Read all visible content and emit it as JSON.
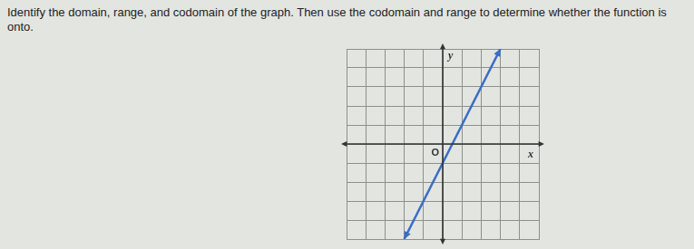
{
  "question": "Identify the domain, range, and codomain of the graph. Then use the codomain and range to determine whether the function is onto.",
  "chart_data": {
    "type": "line",
    "x": [
      -2,
      3
    ],
    "values": [
      -5,
      5
    ],
    "color": "#3a6cc8",
    "marker": "arrow",
    "xlabel": "x",
    "ylabel": "y",
    "annotations": [
      "O"
    ],
    "xlim": [
      -5,
      5
    ],
    "ylim": [
      -5,
      5
    ],
    "xticks": [
      -5,
      -4,
      -3,
      -2,
      -1,
      0,
      1,
      2,
      3,
      4,
      5
    ],
    "yticks": [
      -5,
      -4,
      -3,
      -2,
      -1,
      0,
      1,
      2,
      3,
      4,
      5
    ],
    "grid": true,
    "tick_labels": false
  }
}
